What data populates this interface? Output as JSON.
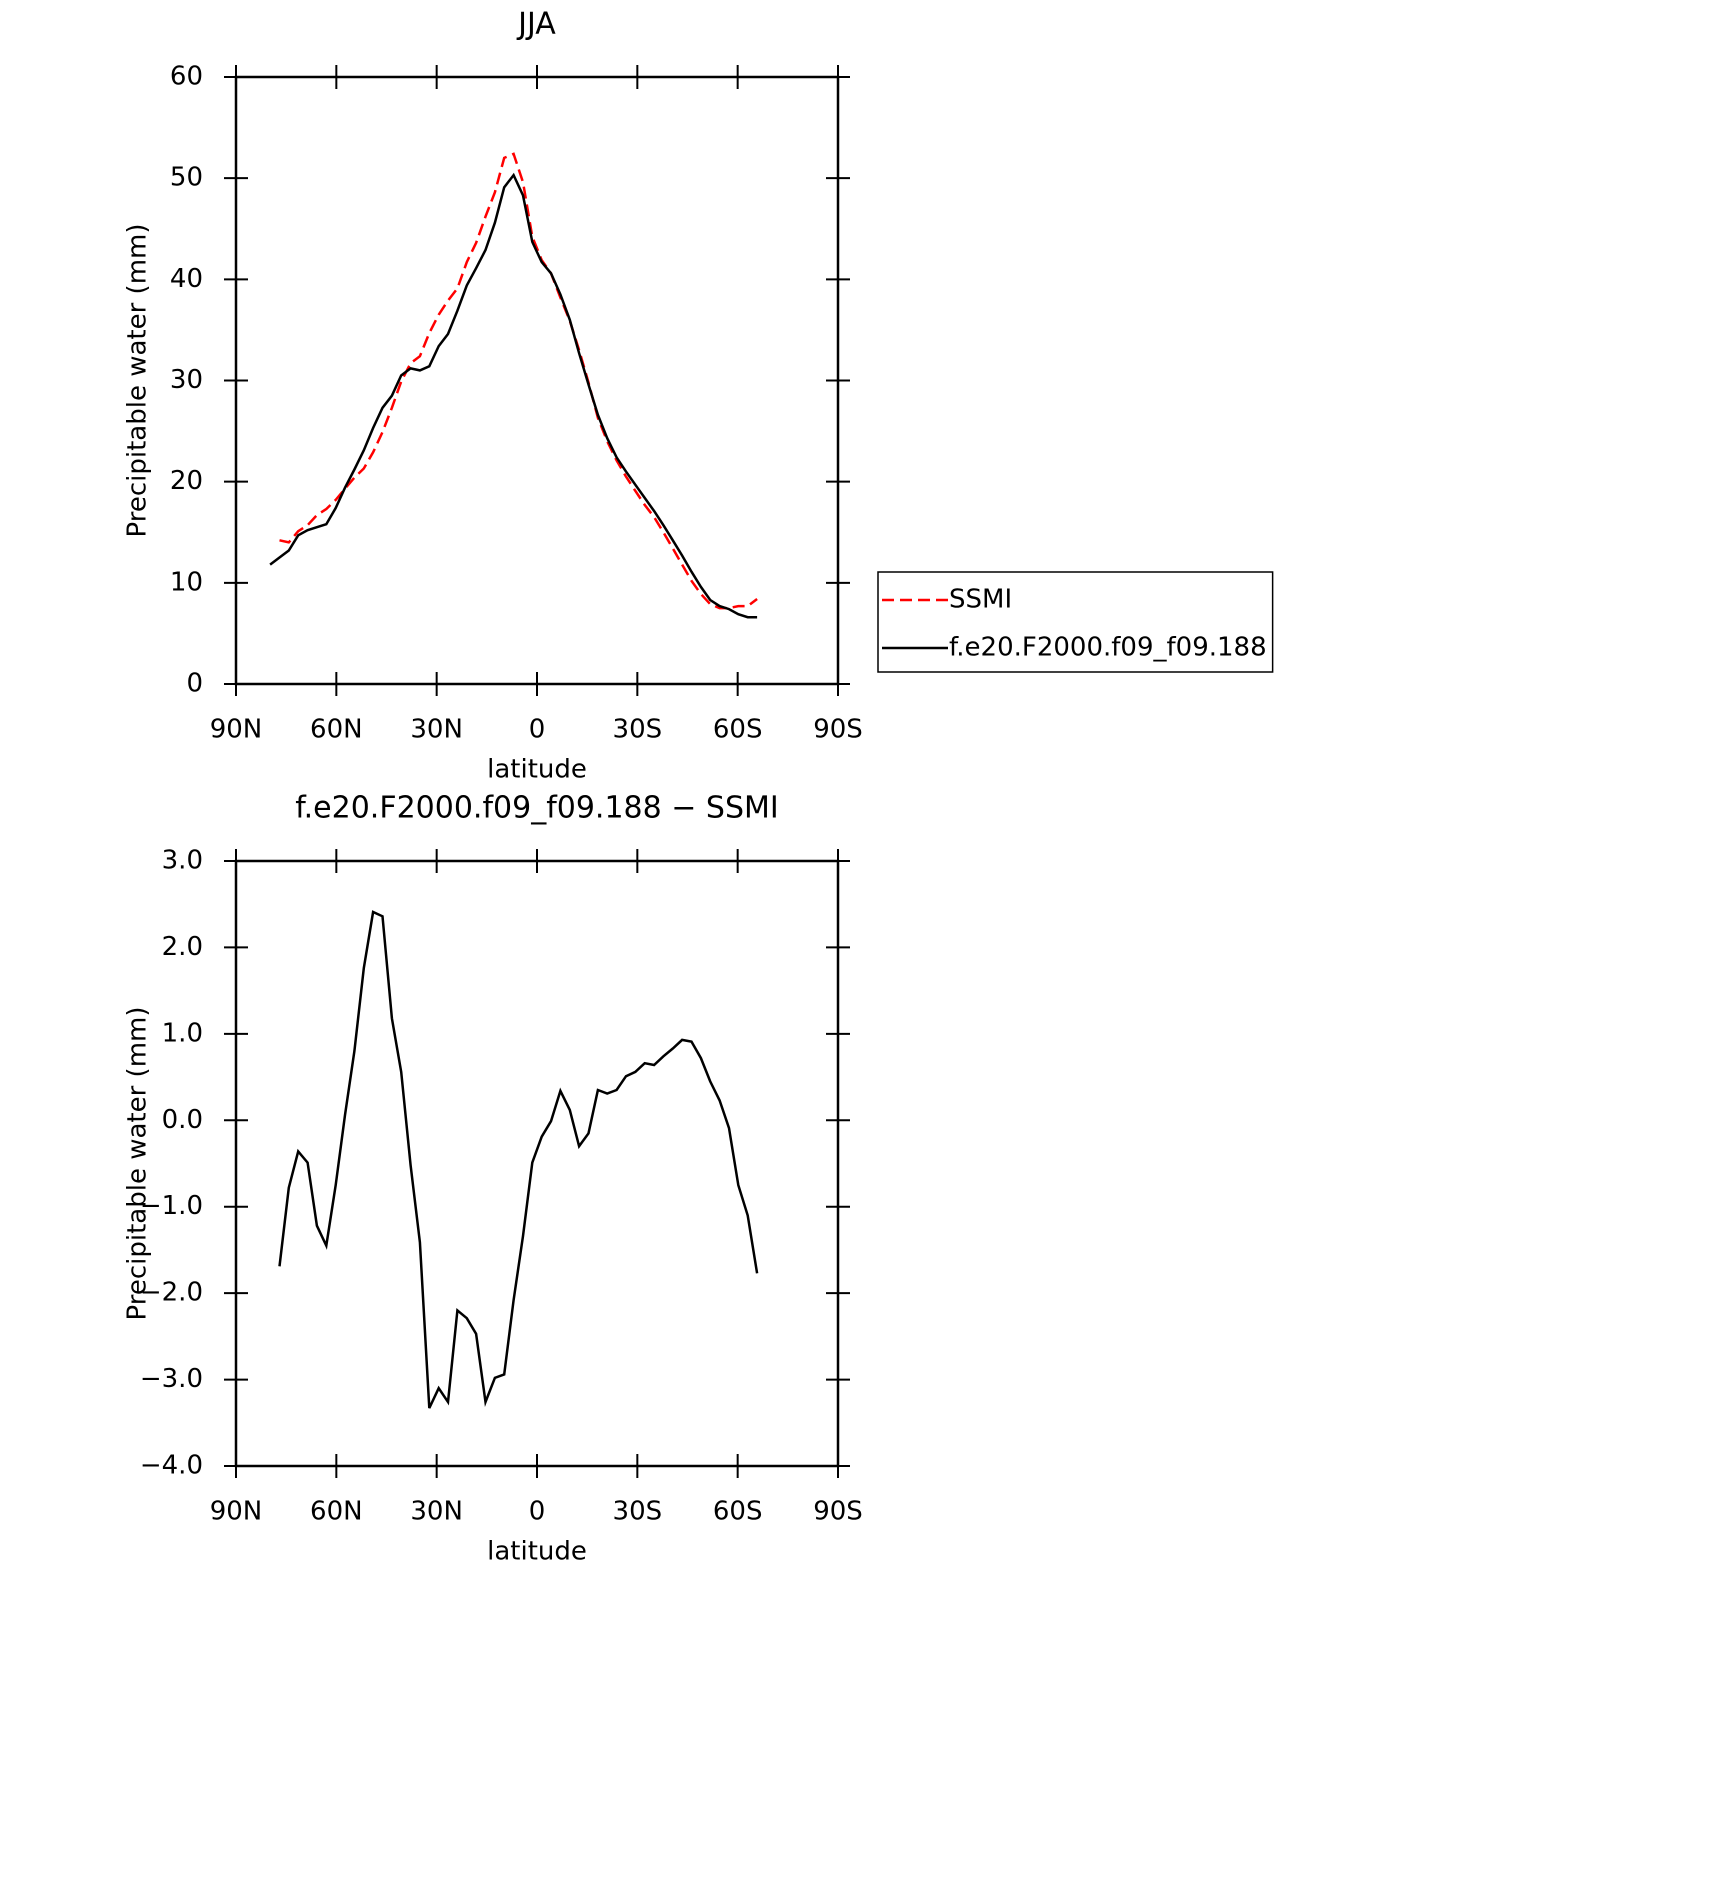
{
  "chart_data": [
    {
      "type": "line",
      "title": "JJA",
      "xlabel": "latitude",
      "ylabel": "Precipitable water (mm)",
      "x": [
        79.8,
        77,
        74.2,
        71.4,
        68.6,
        65.8,
        63,
        60.2,
        57.4,
        54.6,
        51.8,
        49,
        46.2,
        43.4,
        40.6,
        37.8,
        35,
        32.2,
        29.4,
        26.6,
        23.8,
        21,
        18.2,
        15.4,
        12.6,
        9.8,
        7,
        4.2,
        1.4,
        -1.4,
        -4.2,
        -7,
        -9.8,
        -12.6,
        -15.4,
        -18.2,
        -21,
        -23.8,
        -26.6,
        -29.4,
        -32.2,
        -35,
        -37.8,
        -40.6,
        -43.4,
        -46.2,
        -49,
        -51.8,
        -54.6,
        -57.4,
        -60.2,
        -63,
        -65.8
      ],
      "series": [
        {
          "name": "SSMI",
          "color": "#ff0000",
          "dash": true,
          "values": [
            null,
            14.2,
            14.0,
            15.1,
            15.7,
            16.7,
            17.3,
            18.2,
            19.3,
            20.4,
            21.3,
            22.9,
            24.9,
            27.3,
            29.9,
            31.7,
            32.4,
            34.7,
            36.5,
            37.9,
            39.1,
            41.7,
            43.6,
            46.2,
            48.6,
            52.0,
            52.4,
            49.6,
            44.2,
            41.9,
            40.6,
            38.2,
            35.9,
            33.0,
            29.8,
            26.3,
            24.0,
            22.1,
            20.5,
            19.1,
            17.7,
            16.5,
            15.0,
            13.4,
            11.8,
            10.2,
            8.9,
            7.9,
            7.5,
            7.5,
            7.7,
            7.7,
            8.4
          ]
        },
        {
          "name": "f.e20.F2000.f09_f09.188",
          "color": "#000000",
          "dash": false,
          "values": [
            11.8,
            12.5,
            13.2,
            14.7,
            15.2,
            15.5,
            15.8,
            17.4,
            19.4,
            21.2,
            23.1,
            25.3,
            27.3,
            28.5,
            30.5,
            31.2,
            31.0,
            31.4,
            33.4,
            34.6,
            36.9,
            39.4,
            41.1,
            42.9,
            45.6,
            49.1,
            50.3,
            48.3,
            43.7,
            41.7,
            40.6,
            38.5,
            36.0,
            32.7,
            29.6,
            26.6,
            24.3,
            22.4,
            21.0,
            19.7,
            18.4,
            17.1,
            15.7,
            14.2,
            12.7,
            11.1,
            9.6,
            8.3,
            7.7,
            7.4,
            6.9,
            6.6,
            6.6
          ]
        }
      ],
      "xlim": [
        90,
        -90
      ],
      "xticks": [
        {
          "value": 90,
          "label": "90N"
        },
        {
          "value": 60,
          "label": "60N"
        },
        {
          "value": 30,
          "label": "30N"
        },
        0,
        {
          "value": -30,
          "label": "30S"
        },
        {
          "value": -60,
          "label": "60S"
        },
        {
          "value": -90,
          "label": "90S"
        }
      ],
      "ylim": [
        0,
        60
      ],
      "yticks": [
        0,
        10,
        20,
        30,
        40,
        50,
        60
      ],
      "legend": "right"
    },
    {
      "type": "line",
      "title": "f.e20.F2000.f09_f09.188 − SSMI",
      "xlabel": "latitude",
      "ylabel": "Precipitable water (mm)",
      "x": [
        79.8,
        77,
        74.2,
        71.4,
        68.6,
        65.8,
        63,
        60.2,
        57.4,
        54.6,
        51.8,
        49,
        46.2,
        43.4,
        40.6,
        37.8,
        35,
        32.2,
        29.4,
        26.6,
        23.8,
        21,
        18.2,
        15.4,
        12.6,
        9.8,
        7,
        4.2,
        1.4,
        -1.4,
        -4.2,
        -7,
        -9.8,
        -12.6,
        -15.4,
        -18.2,
        -21,
        -23.8,
        -26.6,
        -29.4,
        -32.2,
        -35,
        -37.8,
        -40.6,
        -43.4,
        -46.2,
        -49,
        -51.8,
        -54.6,
        -57.4,
        -60.2,
        -63,
        -65.8
      ],
      "series": [
        {
          "color": "#000000",
          "dash": false,
          "values": [
            null,
            -1.69,
            -0.78,
            -0.36,
            -0.49,
            -1.22,
            -1.45,
            -0.75,
            0.06,
            0.8,
            1.76,
            2.41,
            2.36,
            1.18,
            0.56,
            -0.52,
            -1.41,
            -3.33,
            -3.1,
            -3.26,
            -2.2,
            -2.29,
            -2.47,
            -3.26,
            -2.98,
            -2.94,
            -2.08,
            -1.34,
            -0.49,
            -0.19,
            -0.01,
            0.34,
            0.12,
            -0.3,
            -0.15,
            0.35,
            0.31,
            0.35,
            0.51,
            0.56,
            0.66,
            0.64,
            0.74,
            0.83,
            0.93,
            0.91,
            0.72,
            0.45,
            0.23,
            -0.09,
            -0.75,
            -1.1,
            -1.77
          ]
        }
      ],
      "xlim": [
        90,
        -90
      ],
      "xticks": [
        {
          "value": 90,
          "label": "90N"
        },
        {
          "value": 60,
          "label": "60N"
        },
        {
          "value": 30,
          "label": "30N"
        },
        0,
        {
          "value": -30,
          "label": "30S"
        },
        {
          "value": -60,
          "label": "60S"
        },
        {
          "value": -90,
          "label": "90S"
        }
      ],
      "ylim": [
        -4,
        3
      ],
      "yticks": [
        {
          "value": -4,
          "label": "−4.0"
        },
        {
          "value": -3,
          "label": "−3.0"
        },
        {
          "value": -2,
          "label": "−2.0"
        },
        {
          "value": -1,
          "label": "−1.0"
        },
        {
          "value": 0,
          "label": "0.0"
        },
        {
          "value": 1,
          "label": "1.0"
        },
        {
          "value": 2,
          "label": "2.0"
        },
        {
          "value": 3,
          "label": "3.0"
        }
      ]
    }
  ]
}
